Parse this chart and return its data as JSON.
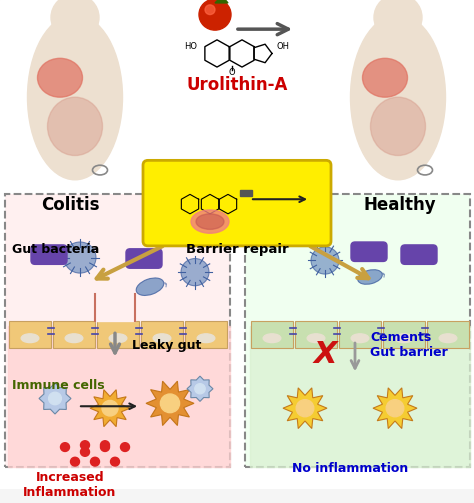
{
  "title": "Urolithin-A",
  "colitis_label": "Colitis",
  "healthy_label": "Healthy",
  "barrier_repair_label": "Barrier repair",
  "gut_bacteria_label": "Gut bacteria",
  "leaky_gut_label": "Leaky gut",
  "immune_cells_label": "Immune cells",
  "increased_inflammation_label": "Increased\nInflammation",
  "cements_gut_barrier_label": "Cements\nGut barrier",
  "no_inflammation_label": "No inflammation",
  "bg_color": "#f5f5f5",
  "left_panel_color": "#ffd6d6",
  "right_panel_color": "#d6f0d6",
  "yellow_box_color": "#ffee00",
  "arrow_color": "#888888",
  "gold_arrow_color": "#c8a040",
  "title_color": "#cc0000",
  "gut_bacteria_color": "#333333",
  "immune_cells_color": "#556b00",
  "leaky_gut_color": "#333333",
  "cements_color": "#0000cc",
  "no_inflammation_color": "#0000cc",
  "increased_inflammation_color": "#cc0000",
  "figsize": [
    4.74,
    5.03
  ],
  "dpi": 100
}
